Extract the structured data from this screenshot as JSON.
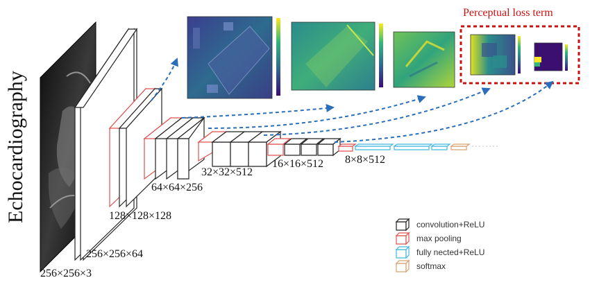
{
  "diagram": {
    "vertical_label": "Echocardiography",
    "highlight_label": "Perceptual loss term",
    "dimension_labels": [
      "256×256×3",
      "256×256×64",
      "128×128×128",
      "64×64×256",
      "32×32×512",
      "16×16×512",
      "8×8×512"
    ],
    "legend": [
      {
        "label": "convolution+ReLU",
        "color": "#222222"
      },
      {
        "label": "max pooling",
        "color": "#e05050"
      },
      {
        "label": "fully nected+ReLU",
        "color": "#40b8e0"
      },
      {
        "label": "softmax",
        "color": "#d8a070"
      }
    ],
    "colors": {
      "conv": "#222222",
      "pool": "#e05050",
      "fc": "#40b8e0",
      "softmax": "#d8a070",
      "arrow": "#2a6ebb",
      "highlight": "#cc1111"
    }
  }
}
